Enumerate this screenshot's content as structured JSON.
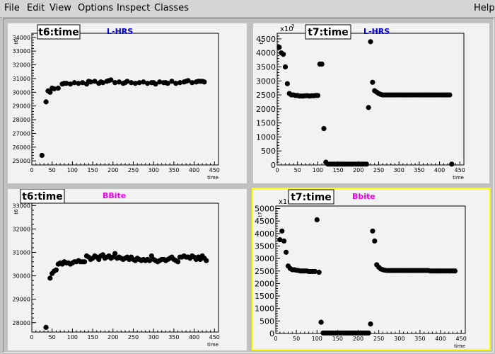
{
  "menubar": {
    "items": [
      "File",
      "Edit",
      "View",
      "Options",
      "Inspect",
      "Classes"
    ],
    "help": "Help"
  },
  "chart_data": [
    {
      "id": "pad1",
      "type": "scatter",
      "title": "t6:time",
      "subtitle": "L-HRS",
      "subtitle_color": "#0000dd",
      "xlabel": "time",
      "ylabel": "t6",
      "xlim": [
        0,
        460
      ],
      "ylim": [
        24700,
        34300
      ],
      "xticks": [
        0,
        50,
        100,
        150,
        200,
        250,
        300,
        350,
        400,
        450
      ],
      "yticks": [
        25000,
        26000,
        27000,
        28000,
        29000,
        30000,
        31000,
        32000,
        33000,
        34000
      ],
      "tick_labels": [
        "0",
        "50",
        "100",
        "150",
        "200",
        "250",
        "300",
        "350",
        "400",
        "450"
      ],
      "ytick_labels": [
        "25000",
        "26000",
        "27000",
        "28000",
        "29000",
        "30000",
        "31000",
        "32000",
        "33000",
        "34000"
      ],
      "multiplier": "",
      "x": [
        25,
        35,
        45,
        55,
        65,
        75,
        85,
        95,
        105,
        115,
        125,
        135,
        145,
        155,
        165,
        175,
        185,
        195,
        205,
        215,
        225,
        235,
        245,
        255,
        265,
        275,
        285,
        295,
        305,
        315,
        325,
        335,
        345,
        355,
        365,
        375,
        385,
        395,
        405,
        415,
        425
      ],
      "y": [
        25400,
        29300,
        30000,
        30250,
        30300,
        30600,
        30650,
        30600,
        30700,
        30650,
        30700,
        30600,
        30750,
        30800,
        30650,
        30700,
        30800,
        30900,
        30700,
        30750,
        30650,
        30800,
        30700,
        30650,
        30700,
        30750,
        30650,
        30700,
        30600,
        30750,
        30700,
        30650,
        30800,
        30650,
        30700,
        30750,
        30850,
        30700,
        30750,
        30800,
        30750
      ],
      "extra": [
        [
          40,
          30100
        ],
        [
          50,
          30300
        ],
        [
          80,
          30650
        ],
        [
          140,
          30800
        ],
        [
          170,
          30750
        ],
        [
          190,
          30850
        ],
        [
          230,
          30700
        ],
        [
          300,
          30700
        ],
        [
          330,
          30700
        ],
        [
          380,
          30800
        ],
        [
          410,
          30800
        ],
        [
          420,
          30800
        ]
      ]
    },
    {
      "id": "pad2",
      "type": "scatter",
      "title": "t7:time",
      "subtitle": "L-HRS",
      "subtitle_color": "#0000dd",
      "xlabel": "time",
      "ylabel": "t7",
      "xlim": [
        0,
        460
      ],
      "ylim": [
        0,
        4700
      ],
      "xticks": [
        0,
        50,
        100,
        150,
        200,
        250,
        300,
        350,
        400,
        450
      ],
      "yticks": [
        0,
        500,
        1000,
        1500,
        2000,
        2500,
        3000,
        3500,
        4000,
        4500
      ],
      "tick_labels": [
        "0",
        "50",
        "100",
        "150",
        "200",
        "250",
        "300",
        "350",
        "400",
        "450"
      ],
      "ytick_labels": [
        "0",
        "500",
        "1000",
        "1500",
        "2000",
        "2500",
        "3000",
        "3500",
        "4000",
        "4500"
      ],
      "multiplier": "x10",
      "multiplier_exp": "3",
      "x": [
        5,
        10,
        15,
        20,
        25,
        30,
        35,
        40,
        45,
        50,
        55,
        60,
        65,
        70,
        75,
        80,
        85,
        90,
        95,
        100,
        105,
        110,
        115,
        120,
        125,
        130,
        135,
        140,
        145,
        150,
        155,
        160,
        165,
        170,
        175,
        180,
        185,
        190,
        195,
        200,
        205,
        210,
        215,
        220,
        225,
        230,
        235,
        240,
        245,
        250,
        255,
        260,
        265,
        270,
        275,
        280,
        285,
        290,
        295,
        300,
        305,
        310,
        315,
        320,
        325,
        330,
        335,
        340,
        345,
        350,
        355,
        360,
        365,
        370,
        375,
        380,
        385,
        390,
        395,
        400,
        405,
        410,
        415,
        420,
        425,
        430
      ],
      "y": [
        4200,
        4000,
        3950,
        3500,
        2900,
        2550,
        2500,
        2500,
        2480,
        2480,
        2460,
        2460,
        2460,
        2470,
        2470,
        2460,
        2470,
        2470,
        2480,
        2480,
        3600,
        3600,
        1300,
        100,
        30,
        30,
        30,
        30,
        30,
        30,
        30,
        30,
        30,
        30,
        30,
        30,
        30,
        30,
        30,
        30,
        30,
        30,
        30,
        30,
        2050,
        4400,
        2950,
        2650,
        2600,
        2550,
        2520,
        2500,
        2500,
        2500,
        2500,
        2500,
        2500,
        2500,
        2500,
        2500,
        2500,
        2500,
        2500,
        2500,
        2500,
        2500,
        2500,
        2500,
        2500,
        2500,
        2500,
        2500,
        2500,
        2500,
        2500,
        2500,
        2500,
        2500,
        2500,
        2500,
        2500,
        2500,
        2500,
        2500,
        2500,
        30
      ],
      "extra": []
    },
    {
      "id": "pad3",
      "type": "scatter",
      "title": "t6:time",
      "subtitle": "BBite",
      "subtitle_color": "#ee00ee",
      "xlabel": "time",
      "ylabel": "t6",
      "xlim": [
        0,
        460
      ],
      "ylim": [
        27600,
        33100
      ],
      "xticks": [
        0,
        50,
        100,
        150,
        200,
        250,
        300,
        350,
        400,
        450
      ],
      "yticks": [
        28000,
        29000,
        30000,
        31000,
        32000,
        33000
      ],
      "tick_labels": [
        "0",
        "50",
        "100",
        "150",
        "200",
        "250",
        "300",
        "350",
        "400",
        "450"
      ],
      "ytick_labels": [
        "28000",
        "29000",
        "30000",
        "31000",
        "32000",
        "33000"
      ],
      "multiplier": "",
      "x": [
        35,
        45,
        50,
        55,
        60,
        65,
        70,
        75,
        80,
        85,
        90,
        95,
        100,
        105,
        110,
        115,
        120,
        125,
        130,
        135,
        140,
        145,
        150,
        155,
        160,
        165,
        170,
        175,
        180,
        185,
        190,
        195,
        200,
        205,
        210,
        215,
        220,
        225,
        230,
        235,
        240,
        245,
        250,
        255,
        260,
        265,
        270,
        275,
        280,
        285,
        290,
        295,
        300,
        305,
        310,
        315,
        320,
        325,
        330,
        335,
        340,
        345,
        350,
        355,
        360,
        365,
        370,
        375,
        380,
        385,
        390,
        395,
        400,
        405,
        410,
        415,
        420,
        425,
        430
      ],
      "y": [
        27800,
        29900,
        30100,
        30200,
        30250,
        30500,
        30550,
        30500,
        30600,
        30550,
        30550,
        30500,
        30550,
        30600,
        30600,
        30650,
        30600,
        30600,
        30600,
        30850,
        30800,
        30700,
        30750,
        30850,
        30800,
        30700,
        30850,
        30900,
        30750,
        30800,
        30850,
        30750,
        30800,
        30950,
        30750,
        30800,
        30750,
        30700,
        30750,
        30800,
        30700,
        30800,
        30700,
        30650,
        30750,
        30700,
        30650,
        30700,
        30650,
        30700,
        30650,
        30850,
        30700,
        30650,
        30600,
        30650,
        30700,
        30700,
        30650,
        30700,
        30750,
        30800,
        30700,
        30650,
        30600,
        30800,
        30800,
        30850,
        30800,
        30800,
        30750,
        30850,
        30800,
        30700,
        30800,
        30700,
        30850,
        30750,
        30650
      ],
      "extra": []
    },
    {
      "id": "pad4",
      "type": "scatter",
      "title": "t7:time",
      "subtitle": "Bbite",
      "subtitle_color": "#ee00ee",
      "xlabel": "time",
      "ylabel": "t7",
      "xlim": [
        0,
        460
      ],
      "ylim": [
        0,
        5100
      ],
      "xticks": [
        0,
        50,
        100,
        150,
        200,
        250,
        300,
        350,
        400,
        450
      ],
      "yticks": [
        0,
        500,
        1000,
        1500,
        2000,
        2500,
        3000,
        3500,
        4000,
        4500,
        5000
      ],
      "tick_labels": [
        "0",
        "50",
        "100",
        "150",
        "200",
        "250",
        "300",
        "350",
        "400",
        "450"
      ],
      "ytick_labels": [
        "0",
        "500",
        "1000",
        "1500",
        "2000",
        "2500",
        "3000",
        "3500",
        "4000",
        "4500",
        "5000"
      ],
      "multiplier": "x10",
      "multiplier_exp": "3",
      "x": [
        10,
        15,
        20,
        25,
        30,
        35,
        40,
        45,
        50,
        55,
        60,
        65,
        70,
        75,
        80,
        85,
        90,
        95,
        100,
        105,
        110,
        115,
        120,
        125,
        130,
        135,
        140,
        145,
        150,
        155,
        160,
        165,
        170,
        175,
        180,
        185,
        190,
        195,
        200,
        205,
        210,
        215,
        220,
        225,
        230,
        235,
        240,
        245,
        250,
        255,
        260,
        265,
        270,
        275,
        280,
        285,
        290,
        295,
        300,
        305,
        310,
        315,
        320,
        325,
        330,
        335,
        340,
        345,
        350,
        355,
        360,
        365,
        370,
        375,
        380,
        385,
        390,
        395,
        400,
        405,
        410,
        415,
        420,
        425,
        430,
        435
      ],
      "y": [
        3750,
        4100,
        3700,
        3250,
        2700,
        2600,
        2550,
        2550,
        2530,
        2520,
        2500,
        2500,
        2500,
        2500,
        2480,
        2480,
        2480,
        2480,
        4550,
        2450,
        450,
        20,
        20,
        20,
        20,
        20,
        20,
        20,
        20,
        20,
        20,
        20,
        20,
        20,
        20,
        20,
        20,
        20,
        20,
        20,
        20,
        20,
        20,
        20,
        380,
        4100,
        3700,
        2750,
        2650,
        2580,
        2550,
        2530,
        2520,
        2520,
        2520,
        2520,
        2520,
        2520,
        2520,
        2520,
        2520,
        2520,
        2520,
        2520,
        2520,
        2520,
        2520,
        2520,
        2520,
        2520,
        2520,
        2520,
        2520,
        2500,
        2500,
        2500,
        2500,
        2500,
        2500,
        2500,
        2500,
        2500,
        2500,
        2500,
        2500,
        2500
      ],
      "extra": []
    }
  ]
}
